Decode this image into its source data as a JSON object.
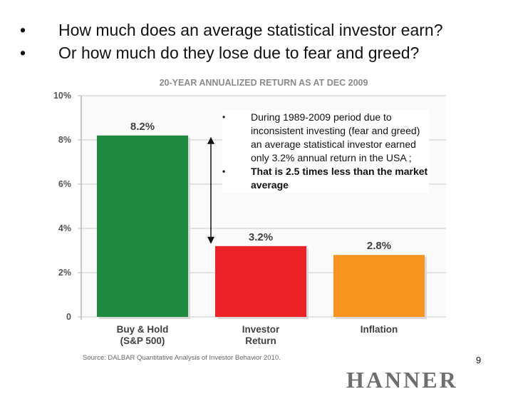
{
  "bullets": [
    {
      "marker": "•",
      "text": "How much does an average statistical investor earn?"
    },
    {
      "marker": "•",
      "text": "Or how much do they lose due to fear and greed?"
    }
  ],
  "chart_data": {
    "type": "bar",
    "title": "20-YEAR ANNUALIZED RETURN AS AT DEC 2009",
    "categories": [
      [
        "Buy & Hold",
        "(S&P 500)"
      ],
      [
        "Investor",
        "Return"
      ],
      [
        "Inflation"
      ]
    ],
    "values": [
      8.2,
      3.2,
      2.8
    ],
    "value_labels": [
      "8.2%",
      "3.2%",
      "2.8%"
    ],
    "colors": [
      "#1f8a3f",
      "#ec2227",
      "#f7941d"
    ],
    "yticks": [
      "0",
      "2%",
      "4%",
      "6%",
      "8%",
      "10%"
    ],
    "ytick_values": [
      0,
      2,
      4,
      6,
      8,
      10
    ],
    "ylim": [
      0,
      10
    ],
    "grid": true,
    "source": "Source: DALBAR Quantitative Analysis of Investor Behavior 2010.",
    "gap_arrow": {
      "from": 8.2,
      "to": 3.2
    }
  },
  "note": [
    {
      "marker": "•",
      "text": "During 1989-2009 period due to inconsistent investing (fear and greed) an average statistical investor earned only 3.2% annual return in the USA ;"
    },
    {
      "marker": "•",
      "text": "That is 2.5 times less than the market average"
    }
  ],
  "page_number": "9",
  "brand": "HANNER",
  "colors": {
    "title_text": "#8a8a8a",
    "axis_text": "#555555",
    "bar_label": "#404040"
  }
}
